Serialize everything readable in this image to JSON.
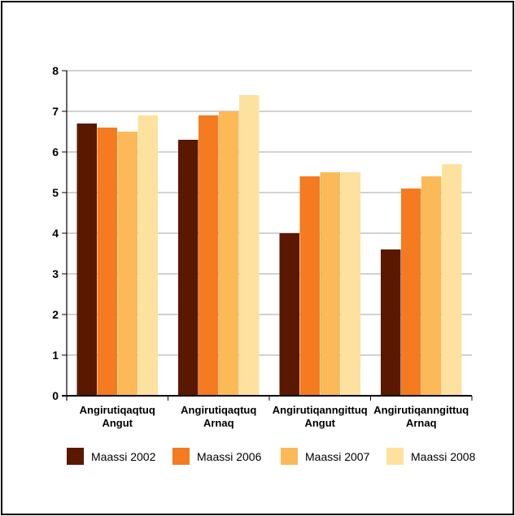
{
  "chart_data": {
    "type": "bar",
    "title": "",
    "xlabel": "",
    "ylabel": "",
    "ylim": [
      0,
      8
    ],
    "yticks": [
      "0",
      "1",
      "2",
      "3",
      "4",
      "5",
      "6",
      "7",
      "8"
    ],
    "grid": true,
    "legend_position": "bottom",
    "categories": [
      [
        "Angirutiqaqtuq",
        "Angut"
      ],
      [
        "Angirutiqaqtuq",
        "Arnaq"
      ],
      [
        "Angirutiqanngittuq",
        "Angut"
      ],
      [
        "Angirutiqanngittuq",
        "Arnaq"
      ]
    ],
    "series": [
      {
        "name": "Maassi 2002",
        "color": "#5a1800",
        "values": [
          6.7,
          6.3,
          4.0,
          3.6
        ]
      },
      {
        "name": "Maassi 2006",
        "color": "#f47b20",
        "values": [
          6.6,
          6.9,
          5.4,
          5.1
        ]
      },
      {
        "name": "Maassi 2007",
        "color": "#fbb957",
        "values": [
          6.5,
          7.0,
          5.5,
          5.4
        ]
      },
      {
        "name": "Maassi 2008",
        "color": "#fde19e",
        "values": [
          6.9,
          7.4,
          5.5,
          5.7
        ]
      }
    ]
  }
}
